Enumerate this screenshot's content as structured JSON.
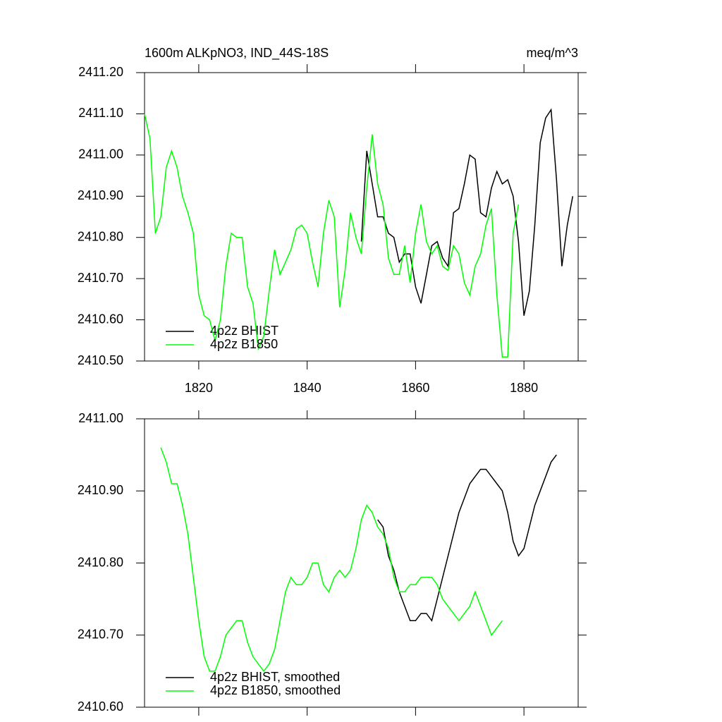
{
  "chart_data": [
    {
      "type": "line",
      "title": "1600m ALKpNO3, IND_44S-18S",
      "units_label": "meq/m^3",
      "x": [
        1810,
        1811,
        1812,
        1813,
        1814,
        1815,
        1816,
        1817,
        1818,
        1819,
        1820,
        1821,
        1822,
        1823,
        1824,
        1825,
        1826,
        1827,
        1828,
        1829,
        1830,
        1831,
        1832,
        1833,
        1834,
        1835,
        1836,
        1837,
        1838,
        1839,
        1840,
        1841,
        1842,
        1843,
        1844,
        1845,
        1846,
        1847,
        1848,
        1849,
        1850,
        1851,
        1852,
        1853,
        1854,
        1855,
        1856,
        1857,
        1858,
        1859,
        1860,
        1861,
        1862,
        1863,
        1864,
        1865,
        1866,
        1867,
        1868,
        1869,
        1870,
        1871,
        1872,
        1873,
        1874,
        1875,
        1876,
        1877,
        1878,
        1879,
        1880,
        1881,
        1882,
        1883,
        1884,
        1885,
        1886,
        1887,
        1888,
        1889
      ],
      "series": [
        {
          "name": "4p2z BHIST",
          "color": "#000000",
          "values": [
            null,
            null,
            null,
            null,
            null,
            null,
            null,
            null,
            null,
            null,
            null,
            null,
            null,
            null,
            null,
            null,
            null,
            null,
            null,
            null,
            null,
            null,
            null,
            null,
            null,
            null,
            null,
            null,
            null,
            null,
            null,
            null,
            null,
            null,
            null,
            null,
            null,
            null,
            null,
            null,
            2410.79,
            2411.01,
            2410.93,
            2410.85,
            2410.85,
            2410.81,
            2410.8,
            2410.74,
            2410.76,
            2410.76,
            2410.68,
            2410.64,
            2410.71,
            2410.78,
            2410.79,
            2410.75,
            2410.73,
            2410.86,
            2410.87,
            2410.93,
            2411.0,
            2410.99,
            2410.86,
            2410.85,
            2410.92,
            2410.96,
            2410.93,
            2410.94,
            2410.9,
            2410.79,
            2410.61,
            2410.67,
            2410.83,
            2411.03,
            2411.09,
            2411.11,
            2410.94,
            2410.73,
            2410.83,
            2410.9
          ]
        },
        {
          "name": "4p2z B1850",
          "color": "#00ff00",
          "values": [
            2411.1,
            2411.04,
            2410.81,
            2410.85,
            2410.97,
            2411.01,
            2410.97,
            2410.9,
            2410.86,
            2410.81,
            2410.66,
            2410.61,
            2410.6,
            2410.55,
            2410.6,
            2410.73,
            2410.81,
            2410.8,
            2410.8,
            2410.68,
            2410.64,
            2410.53,
            2410.56,
            2410.67,
            2410.77,
            2410.71,
            2410.74,
            2410.77,
            2410.82,
            2410.83,
            2410.81,
            2410.74,
            2410.68,
            2410.81,
            2410.89,
            2410.85,
            2410.63,
            2410.72,
            2410.86,
            2410.8,
            2410.76,
            2410.92,
            2411.05,
            2410.93,
            2410.88,
            2410.75,
            2410.71,
            2410.71,
            2410.78,
            2410.69,
            2410.81,
            2410.88,
            2410.79,
            2410.76,
            2410.78,
            2410.73,
            2410.72,
            2410.78,
            2410.76,
            2410.69,
            2410.66,
            2410.73,
            2410.76,
            2410.83,
            2410.87,
            2410.66,
            2410.51,
            2410.51,
            2410.81,
            2410.88,
            null,
            null,
            null,
            null,
            null,
            null,
            null,
            null,
            null,
            null
          ]
        }
      ],
      "xlim": [
        1810,
        1890
      ],
      "xticks": [
        1820,
        1840,
        1860,
        1880
      ],
      "ylim": [
        2410.5,
        2411.2
      ],
      "yticks": [
        {
          "value": 2410.5,
          "label": "2410.50"
        },
        {
          "value": 2410.6,
          "label": "2410.60"
        },
        {
          "value": 2410.7,
          "label": "2410.70"
        },
        {
          "value": 2410.8,
          "label": "2410.80"
        },
        {
          "value": 2410.9,
          "label": "2410.90"
        },
        {
          "value": 2411.0,
          "label": "2411.00"
        },
        {
          "value": 2411.1,
          "label": "2411.10"
        },
        {
          "value": 2411.2,
          "label": "2411.20"
        }
      ],
      "xtick_labels": true,
      "legend": "lower-left"
    },
    {
      "type": "line",
      "x": [
        1813,
        1814,
        1815,
        1816,
        1817,
        1818,
        1819,
        1820,
        1821,
        1822,
        1823,
        1824,
        1825,
        1826,
        1827,
        1828,
        1829,
        1830,
        1831,
        1832,
        1833,
        1834,
        1835,
        1836,
        1837,
        1838,
        1839,
        1840,
        1841,
        1842,
        1843,
        1844,
        1845,
        1846,
        1847,
        1848,
        1849,
        1850,
        1851,
        1852,
        1853,
        1854,
        1855,
        1856,
        1857,
        1858,
        1859,
        1860,
        1861,
        1862,
        1863,
        1864,
        1865,
        1866,
        1867,
        1868,
        1869,
        1870,
        1871,
        1872,
        1873,
        1874,
        1875,
        1876,
        1877,
        1878,
        1879,
        1880,
        1881,
        1882,
        1883,
        1884,
        1885,
        1886
      ],
      "series": [
        {
          "name": "4p2z BHIST, smoothed",
          "color": "#000000",
          "values": [
            null,
            null,
            null,
            null,
            null,
            null,
            null,
            null,
            null,
            null,
            null,
            null,
            null,
            null,
            null,
            null,
            null,
            null,
            null,
            null,
            null,
            null,
            null,
            null,
            null,
            null,
            null,
            null,
            null,
            null,
            null,
            null,
            null,
            null,
            null,
            null,
            null,
            null,
            null,
            null,
            2410.86,
            2410.85,
            2410.81,
            2410.79,
            2410.76,
            2410.74,
            2410.72,
            2410.72,
            2410.73,
            2410.73,
            2410.72,
            2410.75,
            2410.78,
            2410.81,
            2410.84,
            2410.87,
            2410.89,
            2410.91,
            2410.92,
            2410.93,
            2410.93,
            2410.92,
            2410.91,
            2410.9,
            2410.87,
            2410.83,
            2410.81,
            2410.82,
            2410.85,
            2410.88,
            2410.9,
            2410.92,
            2410.94,
            2410.95
          ]
        },
        {
          "name": "4p2z B1850, smoothed",
          "color": "#00ff00",
          "values": [
            2410.96,
            2410.94,
            2410.91,
            2410.91,
            2410.88,
            2410.84,
            2410.78,
            2410.72,
            2410.67,
            2410.65,
            2410.65,
            2410.67,
            2410.7,
            2410.71,
            2410.72,
            2410.72,
            2410.69,
            2410.67,
            2410.66,
            2410.65,
            2410.66,
            2410.68,
            2410.72,
            2410.76,
            2410.78,
            2410.77,
            2410.77,
            2410.78,
            2410.8,
            2410.8,
            2410.77,
            2410.76,
            2410.78,
            2410.79,
            2410.78,
            2410.79,
            2410.82,
            2410.86,
            2410.88,
            2410.87,
            2410.85,
            2410.84,
            2410.82,
            2410.78,
            2410.76,
            2410.76,
            2410.77,
            2410.77,
            2410.78,
            2410.78,
            2410.78,
            2410.77,
            2410.75,
            2410.74,
            2410.73,
            2410.72,
            2410.73,
            2410.74,
            2410.76,
            2410.74,
            2410.72,
            2410.7,
            2410.71,
            2410.72,
            null,
            null,
            null,
            null,
            null,
            null,
            null,
            null,
            null,
            null
          ]
        }
      ],
      "xlim": [
        1810,
        1890
      ],
      "xticks": [
        1820,
        1840,
        1860,
        1880
      ],
      "ylim": [
        2410.6,
        2411.0
      ],
      "yticks": [
        {
          "value": 2410.6,
          "label": "2410.60"
        },
        {
          "value": 2410.7,
          "label": "2410.70"
        },
        {
          "value": 2410.8,
          "label": "2410.80"
        },
        {
          "value": 2410.9,
          "label": "2410.90"
        },
        {
          "value": 2411.0,
          "label": "2411.00"
        }
      ],
      "xtick_labels": false,
      "legend": "lower-left"
    }
  ]
}
